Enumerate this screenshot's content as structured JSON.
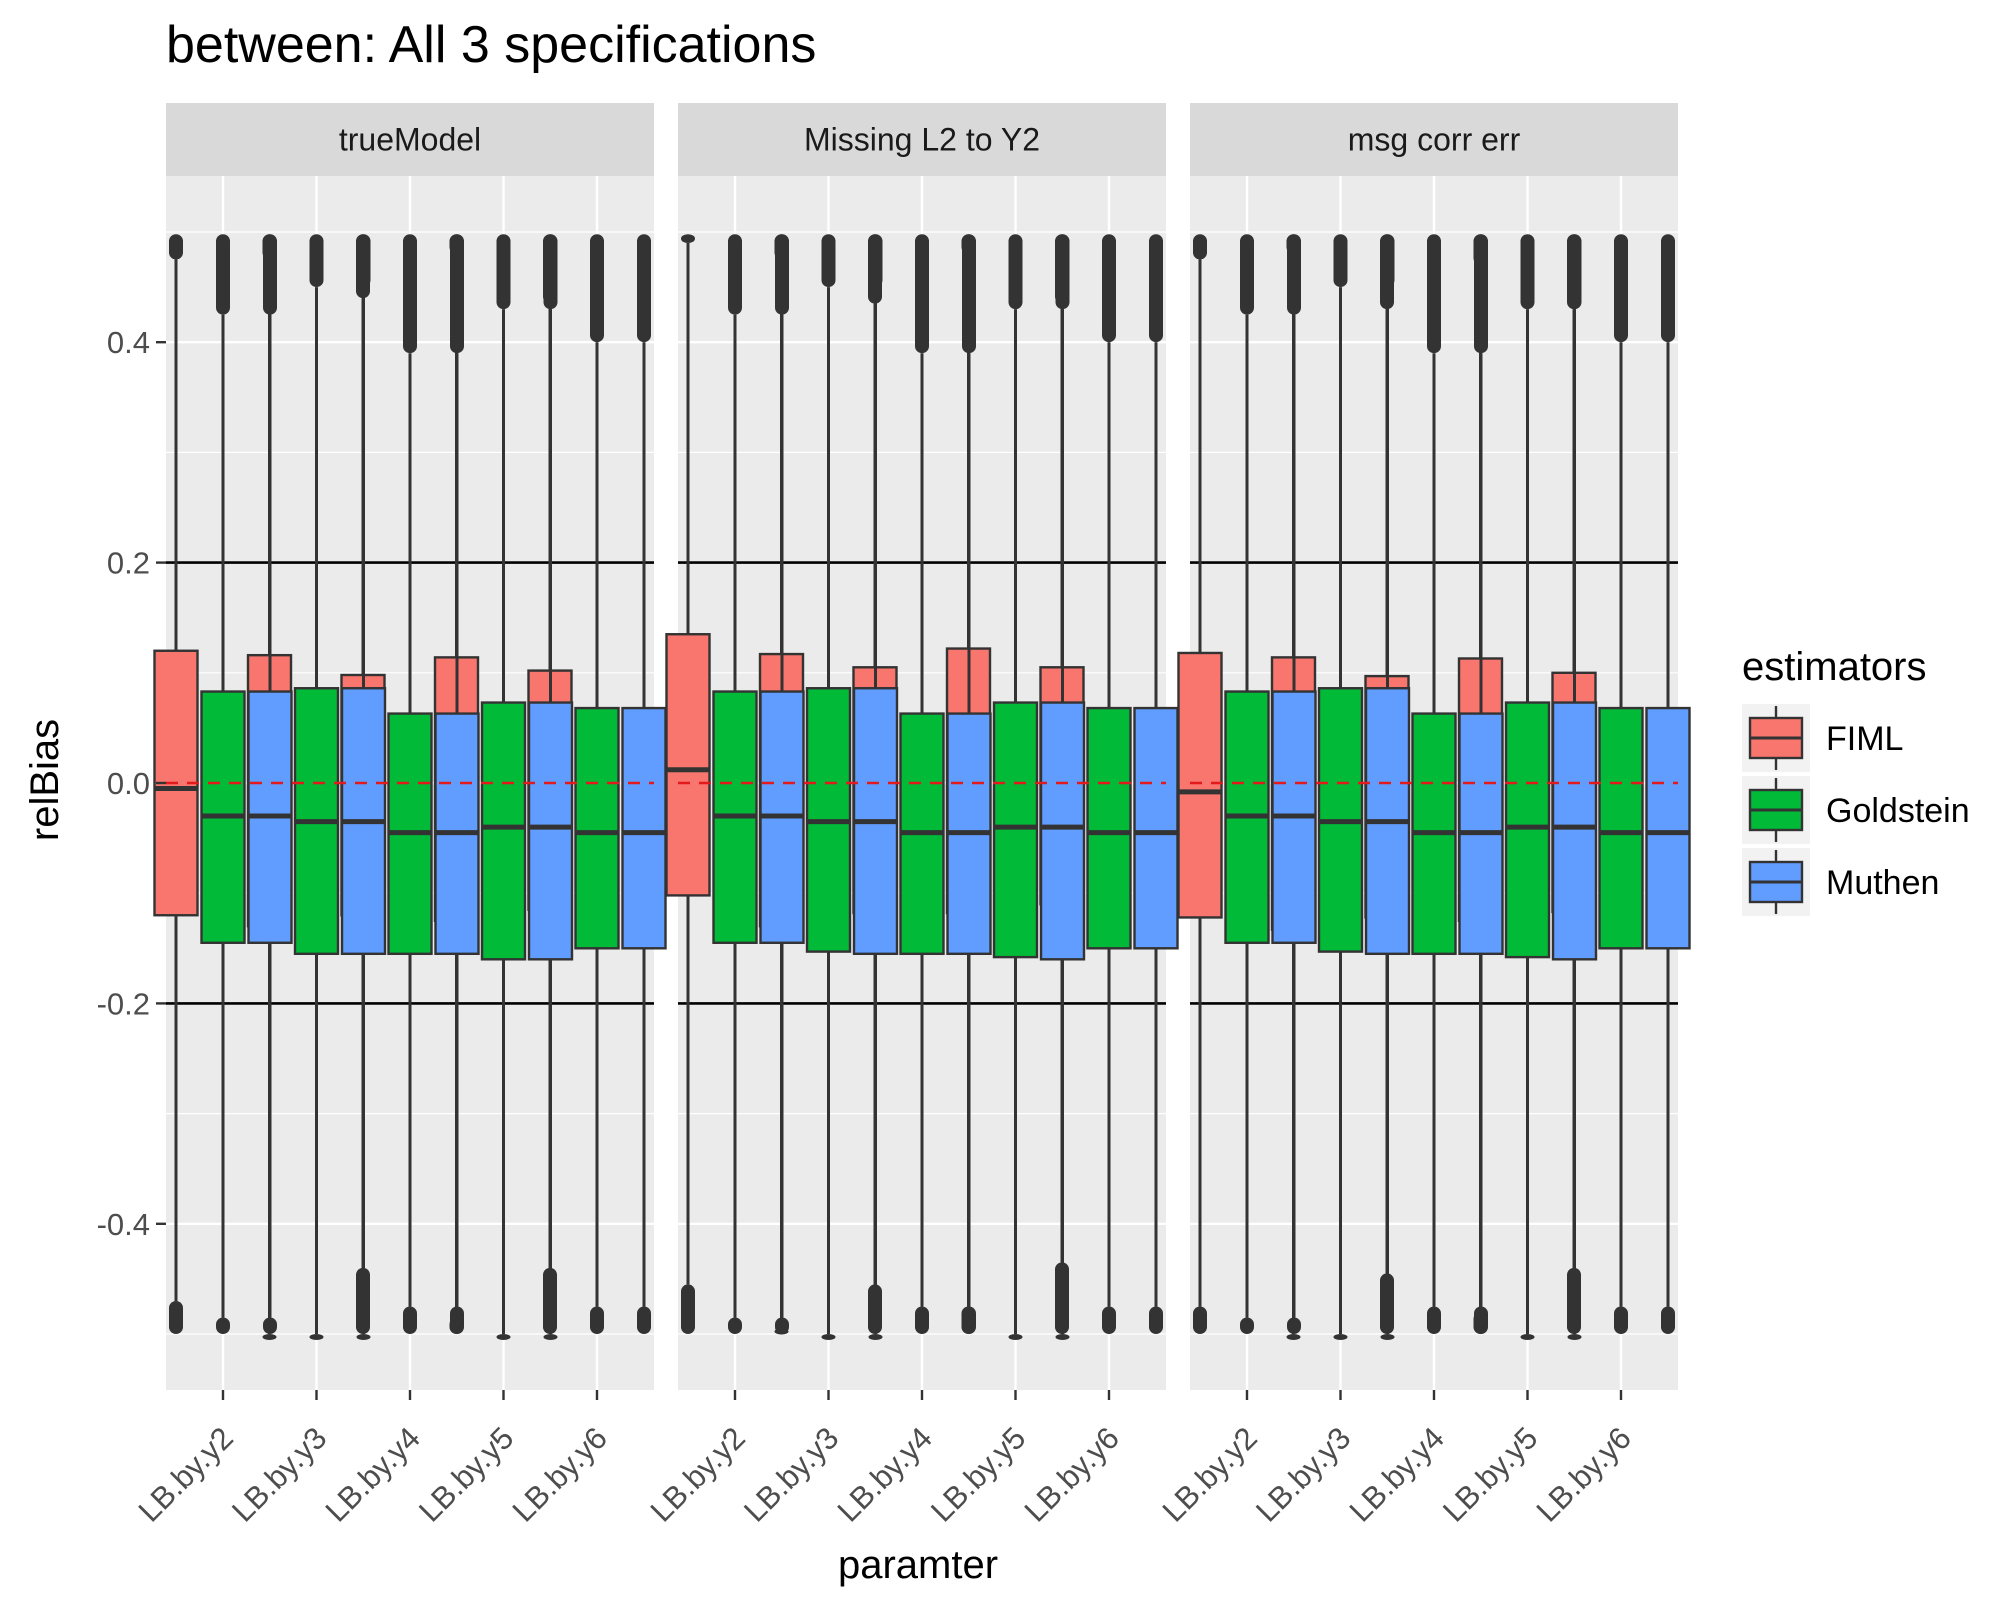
{
  "chart_data": {
    "type": "boxplot",
    "title": "between: All 3 specifications",
    "xlabel": "paramter",
    "ylabel": "relBias",
    "ylim": [
      -0.55,
      0.55
    ],
    "y_ticks": [
      -0.4,
      -0.2,
      0.0,
      0.2,
      0.4
    ],
    "y_tick_labels": [
      "-0.4",
      "-0.2",
      "0.0",
      "0.2",
      "0.4"
    ],
    "reference_lines": [
      {
        "y": 0.2,
        "style": "solid",
        "color": "#000000"
      },
      {
        "y": -0.2,
        "style": "solid",
        "color": "#000000"
      },
      {
        "y": 0.0,
        "style": "dashed",
        "color": "#e31a1c"
      }
    ],
    "categories": [
      "LB.by.y2",
      "LB.by.y3",
      "LB.by.y4",
      "LB.by.y5",
      "LB.by.y6"
    ],
    "legend": {
      "title": "estimators",
      "position": "right",
      "entries": [
        {
          "name": "FIML",
          "color": "#f8766d"
        },
        {
          "name": "Goldstein",
          "color": "#00ba38"
        },
        {
          "name": "Muthen",
          "color": "#619cff"
        }
      ]
    },
    "panels": [
      {
        "label": "trueModel",
        "series": [
          {
            "name": "FIML",
            "boxes": [
              {
                "wlo": -0.47,
                "q1": -0.12,
                "med": -0.005,
                "q3": 0.12,
                "whi": 0.475
              },
              {
                "wlo": -0.5,
                "q1": -0.13,
                "med": -0.01,
                "q3": 0.116,
                "whi": 0.475
              },
              {
                "wlo": -0.44,
                "q1": -0.12,
                "med": -0.015,
                "q3": 0.098,
                "whi": 0.44
              },
              {
                "wlo": -0.485,
                "q1": -0.125,
                "med": -0.005,
                "q3": 0.114,
                "whi": 0.48
              },
              {
                "wlo": -0.44,
                "q1": -0.115,
                "med": -0.01,
                "q3": 0.102,
                "whi": 0.435
              }
            ]
          },
          {
            "name": "Goldstein",
            "boxes": [
              {
                "wlo": -0.485,
                "q1": -0.145,
                "med": -0.03,
                "q3": 0.083,
                "whi": 0.425
              },
              {
                "wlo": -0.5,
                "q1": -0.155,
                "med": -0.035,
                "q3": 0.086,
                "whi": 0.45
              },
              {
                "wlo": -0.475,
                "q1": -0.155,
                "med": -0.045,
                "q3": 0.063,
                "whi": 0.39
              },
              {
                "wlo": -0.5,
                "q1": -0.16,
                "med": -0.04,
                "q3": 0.073,
                "whi": 0.43
              },
              {
                "wlo": -0.475,
                "q1": -0.15,
                "med": -0.045,
                "q3": 0.068,
                "whi": 0.4
              }
            ]
          },
          {
            "name": "Muthen",
            "boxes": [
              {
                "wlo": -0.485,
                "q1": -0.145,
                "med": -0.03,
                "q3": 0.083,
                "whi": 0.425
              },
              {
                "wlo": -0.5,
                "q1": -0.155,
                "med": -0.035,
                "q3": 0.086,
                "whi": 0.45
              },
              {
                "wlo": -0.475,
                "q1": -0.155,
                "med": -0.045,
                "q3": 0.063,
                "whi": 0.39
              },
              {
                "wlo": -0.5,
                "q1": -0.16,
                "med": -0.04,
                "q3": 0.073,
                "whi": 0.43
              },
              {
                "wlo": -0.475,
                "q1": -0.15,
                "med": -0.045,
                "q3": 0.068,
                "whi": 0.4
              }
            ]
          }
        ]
      },
      {
        "label": "Missing L2 to Y2",
        "series": [
          {
            "name": "FIML",
            "boxes": [
              {
                "wlo": -0.455,
                "q1": -0.102,
                "med": 0.012,
                "q3": 0.135,
                "whi": 0.49
              },
              {
                "wlo": -0.495,
                "q1": -0.13,
                "med": -0.01,
                "q3": 0.117,
                "whi": 0.475
              },
              {
                "wlo": -0.455,
                "q1": -0.118,
                "med": -0.01,
                "q3": 0.105,
                "whi": 0.435
              },
              {
                "wlo": -0.475,
                "q1": -0.118,
                "med": 0.003,
                "q3": 0.122,
                "whi": 0.48
              },
              {
                "wlo": -0.435,
                "q1": -0.11,
                "med": -0.003,
                "q3": 0.105,
                "whi": 0.435
              }
            ]
          },
          {
            "name": "Goldstein",
            "boxes": [
              {
                "wlo": -0.485,
                "q1": -0.145,
                "med": -0.03,
                "q3": 0.083,
                "whi": 0.425
              },
              {
                "wlo": -0.5,
                "q1": -0.153,
                "med": -0.035,
                "q3": 0.086,
                "whi": 0.45
              },
              {
                "wlo": -0.475,
                "q1": -0.155,
                "med": -0.045,
                "q3": 0.063,
                "whi": 0.39
              },
              {
                "wlo": -0.5,
                "q1": -0.158,
                "med": -0.04,
                "q3": 0.073,
                "whi": 0.43
              },
              {
                "wlo": -0.475,
                "q1": -0.15,
                "med": -0.045,
                "q3": 0.068,
                "whi": 0.4
              }
            ]
          },
          {
            "name": "Muthen",
            "boxes": [
              {
                "wlo": -0.485,
                "q1": -0.145,
                "med": -0.03,
                "q3": 0.083,
                "whi": 0.425
              },
              {
                "wlo": -0.5,
                "q1": -0.155,
                "med": -0.035,
                "q3": 0.086,
                "whi": 0.45
              },
              {
                "wlo": -0.475,
                "q1": -0.155,
                "med": -0.045,
                "q3": 0.063,
                "whi": 0.39
              },
              {
                "wlo": -0.5,
                "q1": -0.16,
                "med": -0.04,
                "q3": 0.073,
                "whi": 0.43
              },
              {
                "wlo": -0.475,
                "q1": -0.15,
                "med": -0.045,
                "q3": 0.068,
                "whi": 0.4
              }
            ]
          }
        ]
      },
      {
        "label": "msg corr err",
        "series": [
          {
            "name": "FIML",
            "boxes": [
              {
                "wlo": -0.475,
                "q1": -0.122,
                "med": -0.008,
                "q3": 0.118,
                "whi": 0.475
              },
              {
                "wlo": -0.5,
                "q1": -0.133,
                "med": -0.013,
                "q3": 0.114,
                "whi": 0.48
              },
              {
                "wlo": -0.445,
                "q1": -0.122,
                "med": -0.016,
                "q3": 0.097,
                "whi": 0.43
              },
              {
                "wlo": -0.48,
                "q1": -0.125,
                "med": -0.004,
                "q3": 0.113,
                "whi": 0.47
              },
              {
                "wlo": -0.44,
                "q1": -0.117,
                "med": -0.01,
                "q3": 0.1,
                "whi": 0.43
              }
            ]
          },
          {
            "name": "Goldstein",
            "boxes": [
              {
                "wlo": -0.485,
                "q1": -0.145,
                "med": -0.03,
                "q3": 0.083,
                "whi": 0.425
              },
              {
                "wlo": -0.5,
                "q1": -0.153,
                "med": -0.035,
                "q3": 0.086,
                "whi": 0.45
              },
              {
                "wlo": -0.475,
                "q1": -0.155,
                "med": -0.045,
                "q3": 0.063,
                "whi": 0.39
              },
              {
                "wlo": -0.5,
                "q1": -0.158,
                "med": -0.04,
                "q3": 0.073,
                "whi": 0.43
              },
              {
                "wlo": -0.475,
                "q1": -0.15,
                "med": -0.045,
                "q3": 0.068,
                "whi": 0.4
              }
            ]
          },
          {
            "name": "Muthen",
            "boxes": [
              {
                "wlo": -0.485,
                "q1": -0.145,
                "med": -0.03,
                "q3": 0.083,
                "whi": 0.425
              },
              {
                "wlo": -0.5,
                "q1": -0.155,
                "med": -0.035,
                "q3": 0.086,
                "whi": 0.45
              },
              {
                "wlo": -0.475,
                "q1": -0.155,
                "med": -0.045,
                "q3": 0.063,
                "whi": 0.39
              },
              {
                "wlo": -0.5,
                "q1": -0.16,
                "med": -0.04,
                "q3": 0.073,
                "whi": 0.43
              },
              {
                "wlo": -0.475,
                "q1": -0.15,
                "med": -0.045,
                "q3": 0.068,
                "whi": 0.4
              }
            ]
          }
        ]
      }
    ]
  }
}
